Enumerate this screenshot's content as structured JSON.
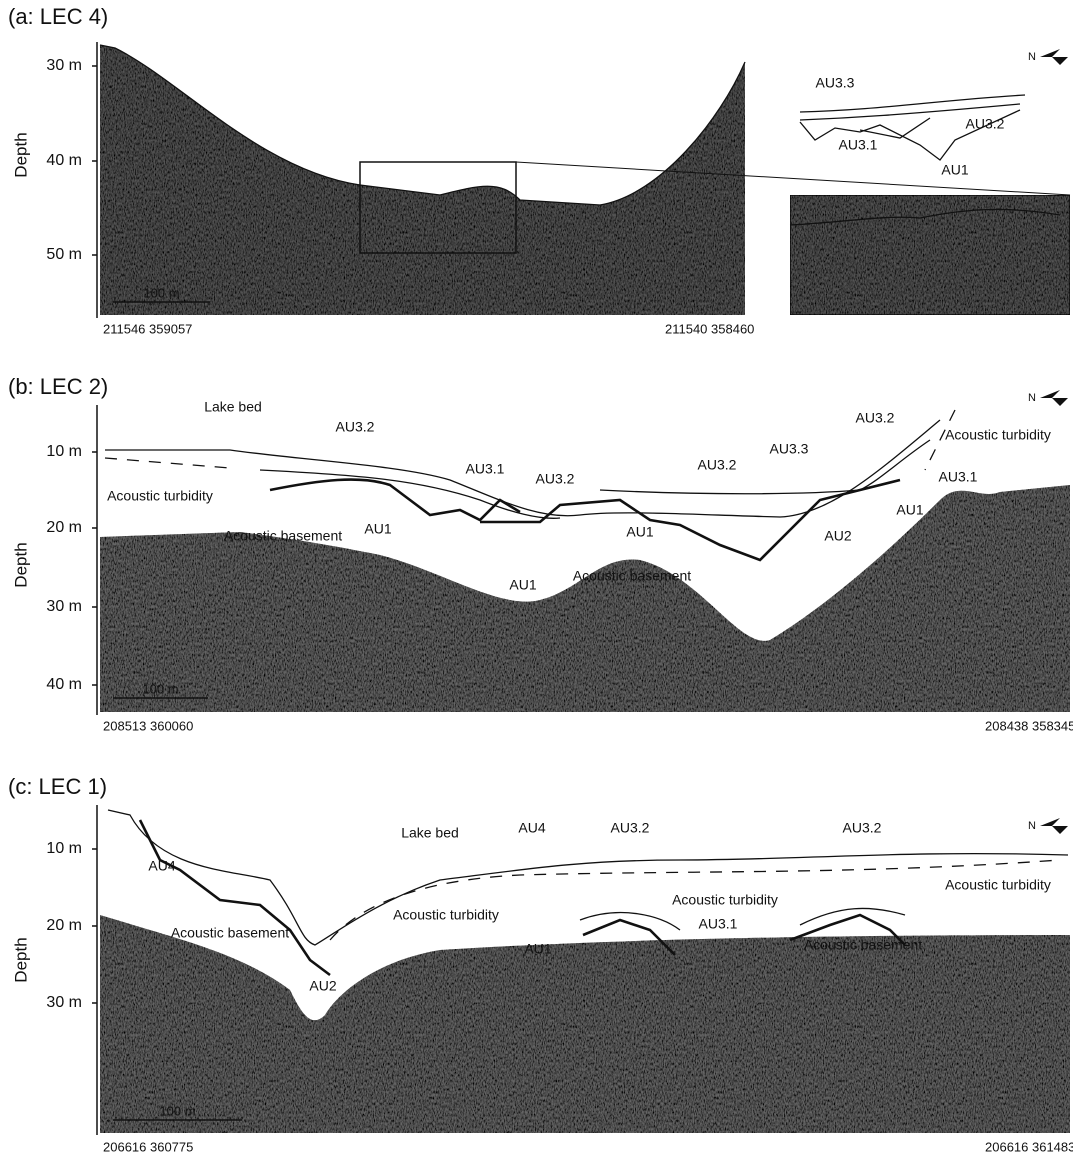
{
  "panels": [
    {
      "title": "(a: LEC 4)",
      "axis_label": "Depth",
      "ticks": [
        "30 m",
        "40 m",
        "50 m"
      ],
      "coords_left": "211546  359057",
      "coords_right": "211540  358460",
      "scale_bar": "100 m",
      "labels": [
        "AU3.3",
        "AU3.2",
        "AU3.1",
        "AU1"
      ]
    },
    {
      "title": "(b: LEC 2)",
      "axis_label": "Depth",
      "ticks": [
        "10 m",
        "20 m",
        "30 m",
        "40 m"
      ],
      "coords_left": "208513  360060",
      "coords_right": "208438  358345",
      "scale_bar": "100 m",
      "labels": [
        "Lake bed",
        "AU3.2",
        "Acoustic turbidity",
        "AU3.1",
        "AU3.2",
        "AU3.2",
        "AU3.3",
        "AU3.2",
        "Acoustic turbidity",
        "AU3.1",
        "Acoustic basement",
        "AU1",
        "AU1",
        "AU2",
        "AU1",
        "AU1",
        "Acoustic basement"
      ]
    },
    {
      "title": "(c: LEC 1)",
      "axis_label": "Depth",
      "ticks": [
        "10 m",
        "20 m",
        "30 m"
      ],
      "coords_left": "206616  360775",
      "coords_right": "206616  361483",
      "scale_bar": "100 m",
      "labels": [
        "Lake bed",
        "AU4",
        "AU3.2",
        "AU3.2",
        "AU4",
        "Acoustic turbidity",
        "Acoustic turbidity",
        "Acoustic turbidity",
        "Acoustic basement",
        "AU3.1",
        "AU1",
        "Acoustic basement",
        "AU2"
      ]
    }
  ]
}
